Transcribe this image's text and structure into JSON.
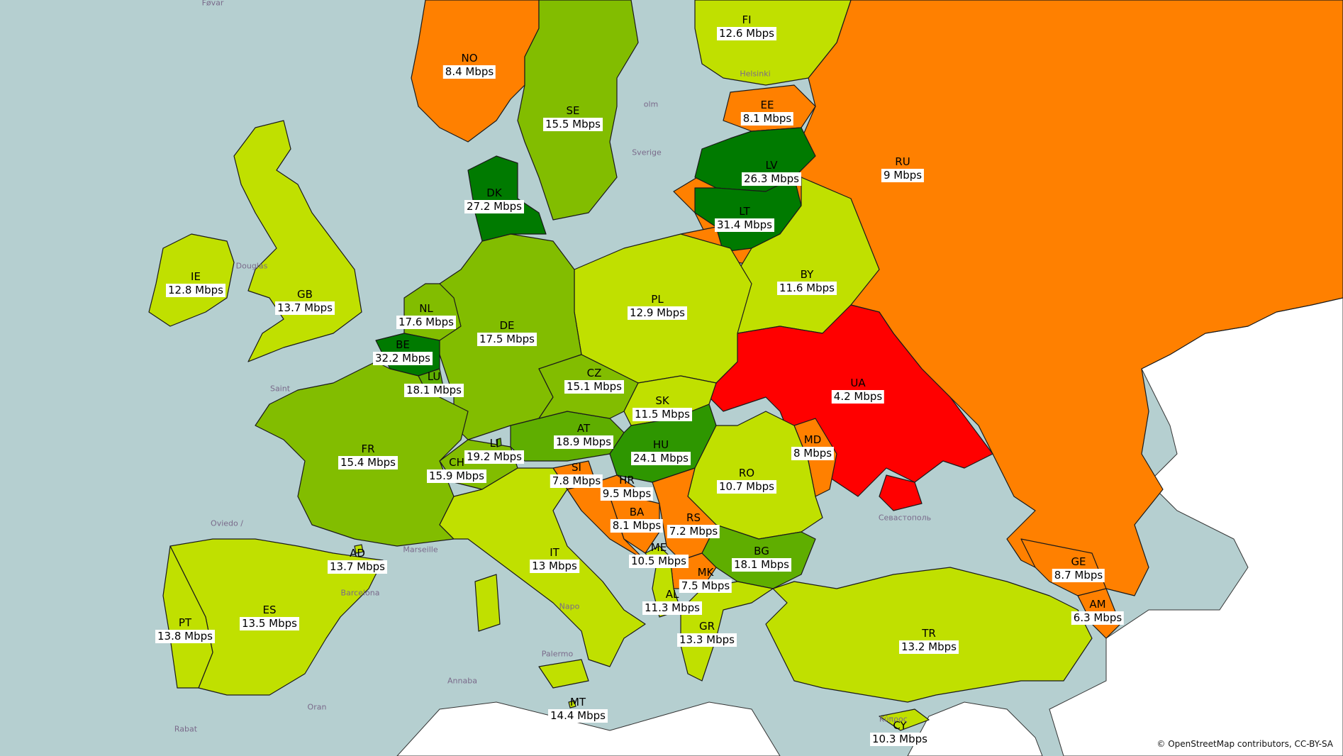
{
  "attribution": "© OpenStreetMap contributors, CC-BY-SA",
  "legend_colors": {
    "fastest": "#007a00",
    "fast": "#5fae00",
    "above_avg": "#82bd00",
    "average": "#c0e000",
    "slow": "#ff8000",
    "slowest": "#ff0000"
  },
  "place_names": {
    "forvar": "Føvar",
    "helsinki": "Helsinki",
    "stockholm": "olm",
    "sverige": "Sverige",
    "douglas": "Douglas",
    "saint": "Saint",
    "oviedo": "Oviedo /",
    "marseille": "Marseille",
    "barcelona": "Barcelona",
    "palermo": "Palermo",
    "annaba": "Annaba",
    "oran": "Oran",
    "rabat": "Rabat",
    "sevastopol": "Севастополь",
    "kypros": "Κύπρος",
    "napoli": "Napo"
  },
  "countries": [
    {
      "code": "NO",
      "speed": "8.4 Mbps",
      "color": "#ff8000"
    },
    {
      "code": "SE",
      "speed": "15.5 Mbps",
      "color": "#82bd00"
    },
    {
      "code": "FI",
      "speed": "12.6 Mbps",
      "color": "#c0e000"
    },
    {
      "code": "EE",
      "speed": "8.1 Mbps",
      "color": "#ff8000"
    },
    {
      "code": "RU",
      "speed": "9 Mbps",
      "color": "#ff8000"
    },
    {
      "code": "LV",
      "speed": "26.3 Mbps",
      "color": "#007a00"
    },
    {
      "code": "LT",
      "speed": "31.4 Mbps",
      "color": "#007a00"
    },
    {
      "code": "DK",
      "speed": "27.2 Mbps",
      "color": "#007a00"
    },
    {
      "code": "IE",
      "speed": "12.8 Mbps",
      "color": "#c0e000"
    },
    {
      "code": "GB",
      "speed": "13.7 Mbps",
      "color": "#c0e000"
    },
    {
      "code": "NL",
      "speed": "17.6 Mbps",
      "color": "#82bd00"
    },
    {
      "code": "BE",
      "speed": "32.2 Mbps",
      "color": "#007a00"
    },
    {
      "code": "LU",
      "speed": "18.1 Mbps",
      "color": "#5fae00"
    },
    {
      "code": "DE",
      "speed": "17.5 Mbps",
      "color": "#82bd00"
    },
    {
      "code": "PL",
      "speed": "12.9 Mbps",
      "color": "#c0e000"
    },
    {
      "code": "BY",
      "speed": "11.6 Mbps",
      "color": "#c0e000"
    },
    {
      "code": "UA",
      "speed": "4.2 Mbps",
      "color": "#ff0000"
    },
    {
      "code": "CZ",
      "speed": "15.1 Mbps",
      "color": "#82bd00"
    },
    {
      "code": "SK",
      "speed": "11.5 Mbps",
      "color": "#c0e000"
    },
    {
      "code": "AT",
      "speed": "18.9 Mbps",
      "color": "#5fae00"
    },
    {
      "code": "HU",
      "speed": "24.1 Mbps",
      "color": "#2e9600"
    },
    {
      "code": "MD",
      "speed": "8 Mbps",
      "color": "#ff8000"
    },
    {
      "code": "FR",
      "speed": "15.4 Mbps",
      "color": "#82bd00"
    },
    {
      "code": "LI",
      "speed": "19.2 Mbps",
      "color": "#5fae00"
    },
    {
      "code": "CH",
      "speed": "15.9 Mbps",
      "color": "#82bd00"
    },
    {
      "code": "SI",
      "speed": "7.8 Mbps",
      "color": "#ff8000"
    },
    {
      "code": "HR",
      "speed": "9.5 Mbps",
      "color": "#ff8000"
    },
    {
      "code": "RO",
      "speed": "10.7 Mbps",
      "color": "#c0e000"
    },
    {
      "code": "BA",
      "speed": "8.1 Mbps",
      "color": "#ff8000"
    },
    {
      "code": "RS",
      "speed": "7.2 Mbps",
      "color": "#ff8000"
    },
    {
      "code": "ME",
      "speed": "10.5 Mbps",
      "color": "#c0e000"
    },
    {
      "code": "BG",
      "speed": "18.1 Mbps",
      "color": "#5fae00"
    },
    {
      "code": "AD",
      "speed": "13.7 Mbps",
      "color": "#c0e000"
    },
    {
      "code": "IT",
      "speed": "13 Mbps",
      "color": "#c0e000"
    },
    {
      "code": "MK",
      "speed": "7.5 Mbps",
      "color": "#ff8000"
    },
    {
      "code": "GE",
      "speed": "8.7 Mbps",
      "color": "#ff8000"
    },
    {
      "code": "PT",
      "speed": "13.8 Mbps",
      "color": "#c0e000"
    },
    {
      "code": "ES",
      "speed": "13.5 Mbps",
      "color": "#c0e000"
    },
    {
      "code": "AL",
      "speed": "11.3 Mbps",
      "color": "#c0e000"
    },
    {
      "code": "GR",
      "speed": "13.3 Mbps",
      "color": "#c0e000"
    },
    {
      "code": "AM",
      "speed": "6.3 Mbps",
      "color": "#ff8000"
    },
    {
      "code": "TR",
      "speed": "13.2 Mbps",
      "color": "#c0e000"
    },
    {
      "code": "MT",
      "speed": "14.4 Mbps",
      "color": "#c0e000"
    },
    {
      "code": "CY",
      "speed": "10.3 Mbps",
      "color": "#c0e000"
    }
  ]
}
